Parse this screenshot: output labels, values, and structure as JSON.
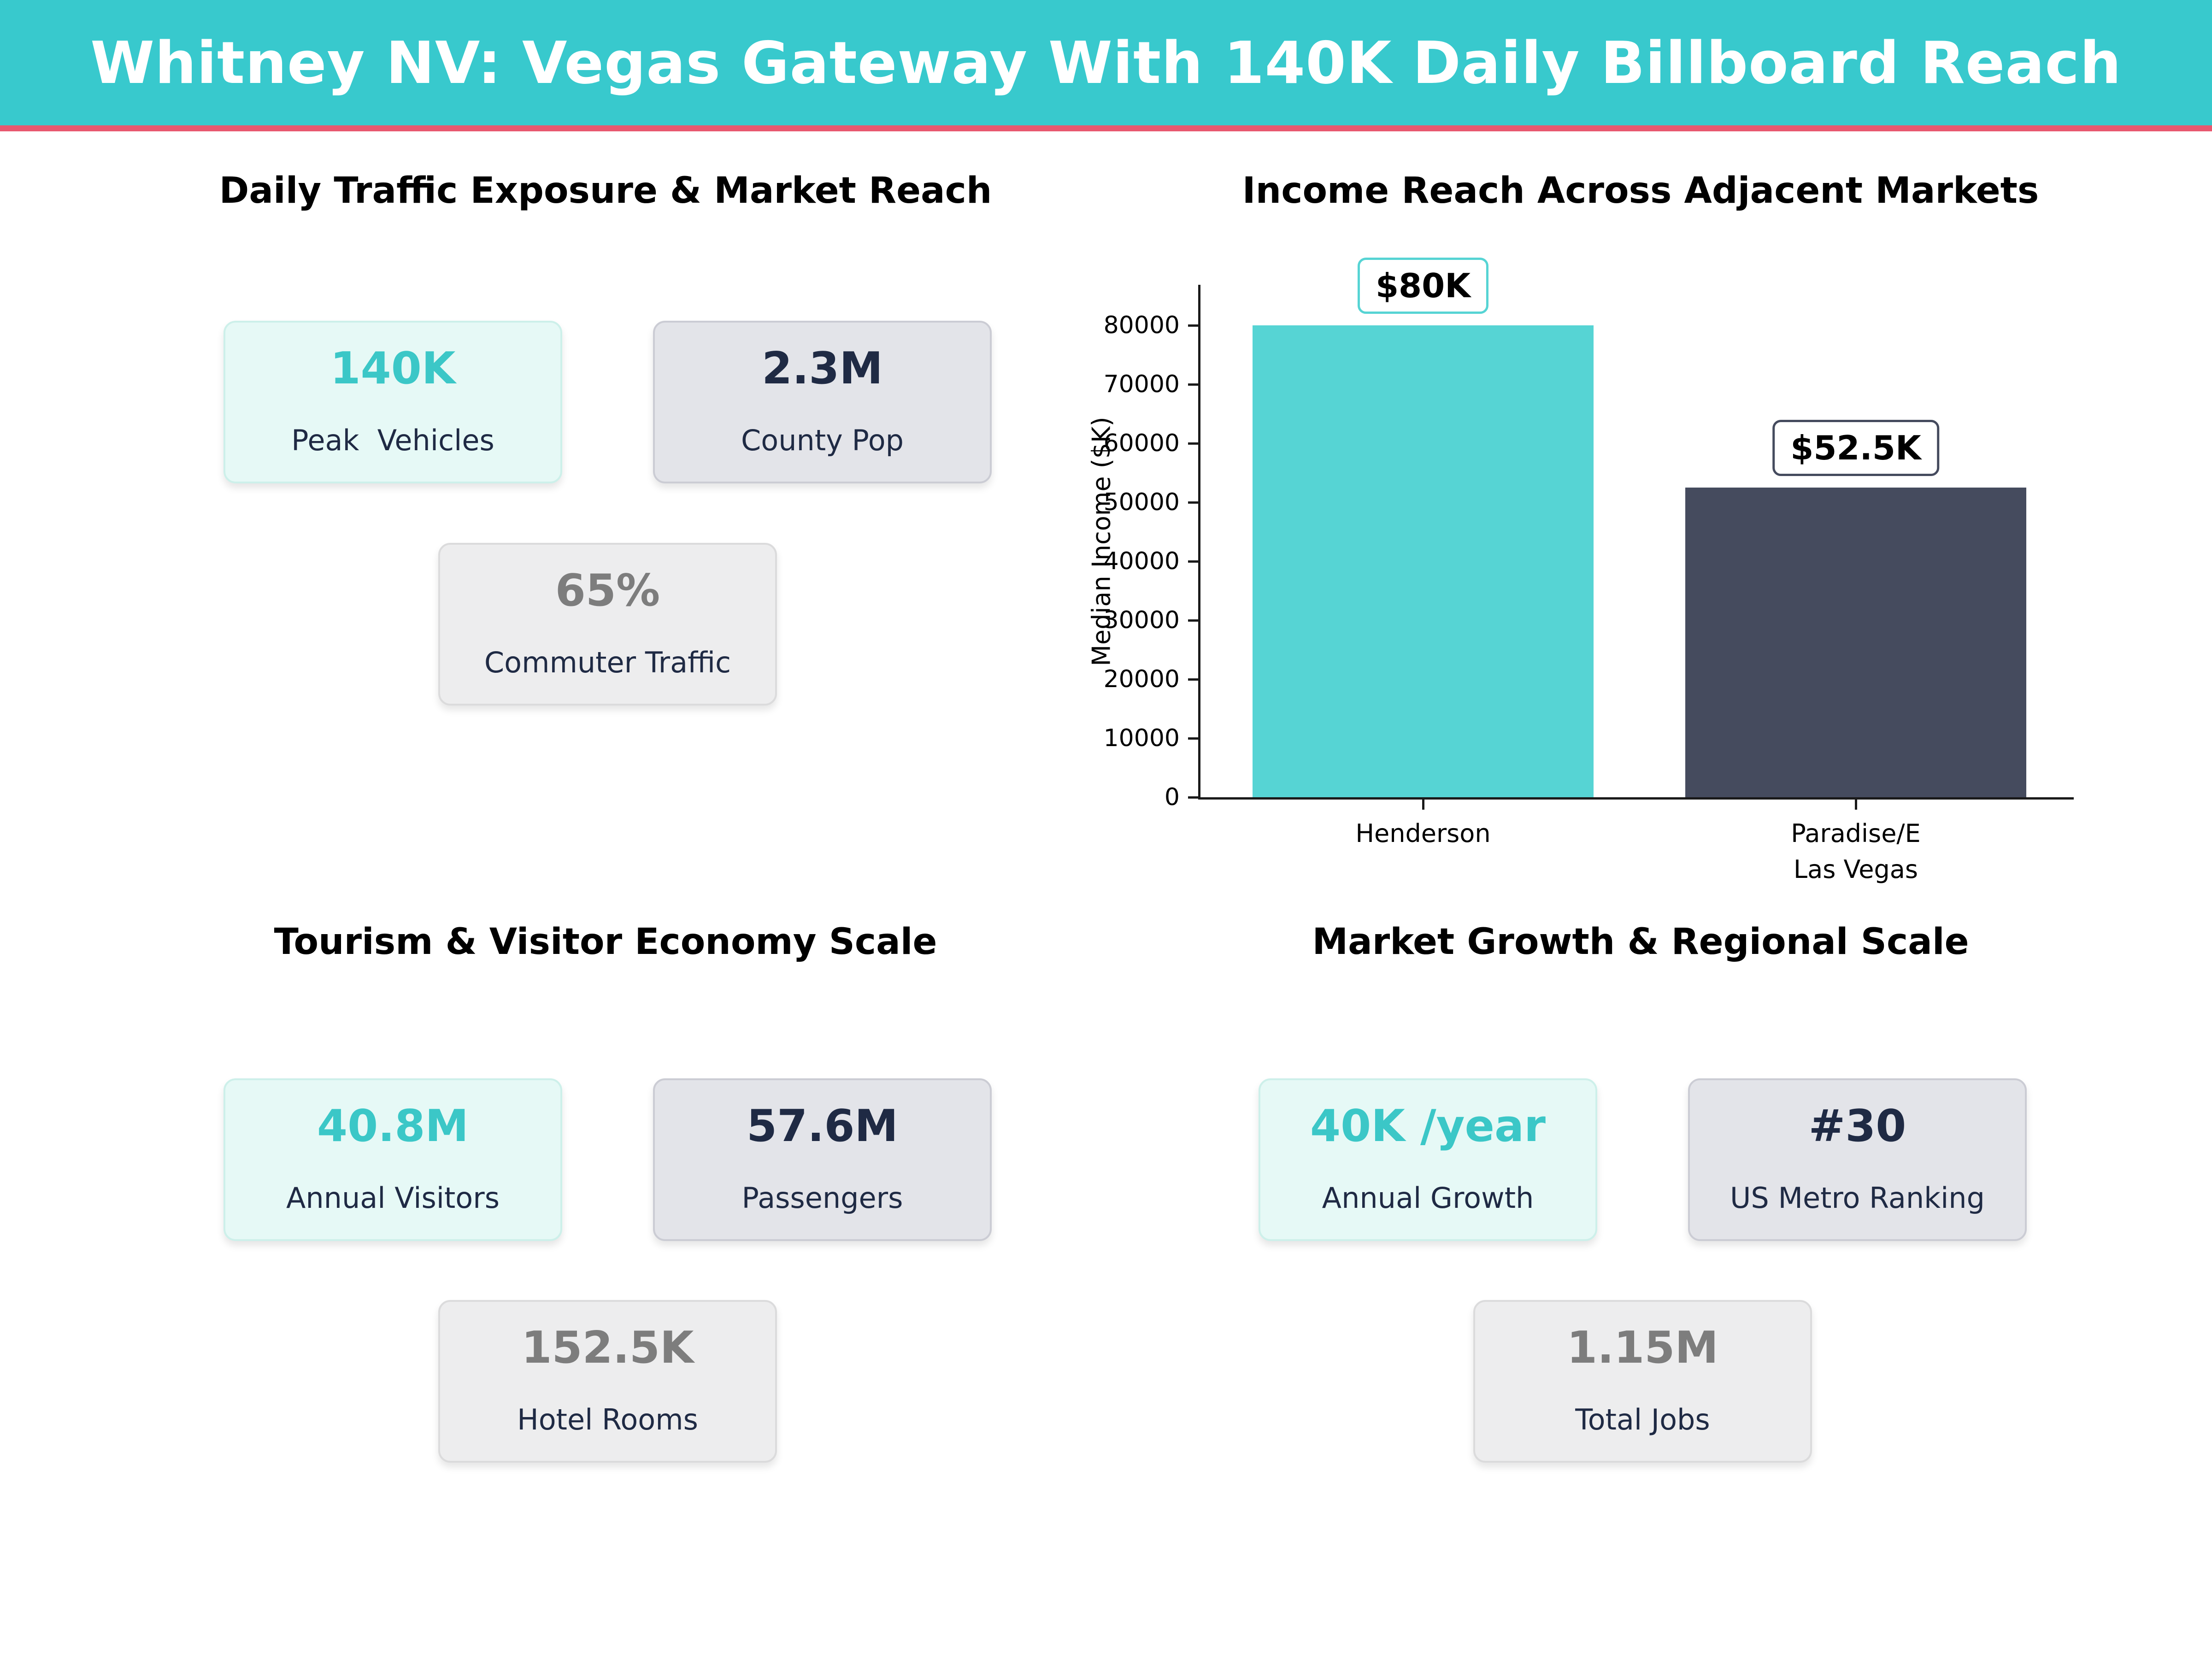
{
  "header": {
    "title": "Whitney NV: Vegas Gateway With 140K Daily Billboard Reach"
  },
  "palette": {
    "header_bg": "#38c9cd",
    "header_accent": "#e8586f",
    "teal": "#3bc7c7",
    "navy": "#1f2a44",
    "muted_gray": "#7d7d7d",
    "bar_teal": "#56d4d4",
    "bar_slate": "#454b5e"
  },
  "quadrants": {
    "traffic": {
      "title": "Daily Traffic Exposure & Market Reach",
      "cards": [
        {
          "value": "140K",
          "label": "Peak  Vehicles"
        },
        {
          "value": "2.3M",
          "label": "County Pop"
        },
        {
          "value": "65%",
          "label": "Commuter Traffic"
        }
      ]
    },
    "income": {
      "title": "Income Reach Across Adjacent Markets"
    },
    "tourism": {
      "title": "Tourism & Visitor Economy Scale",
      "cards": [
        {
          "value": "40.8M",
          "label": "Annual Visitors"
        },
        {
          "value": "57.6M",
          "label": "Passengers"
        },
        {
          "value": "152.5K",
          "label": "Hotel Rooms"
        }
      ]
    },
    "growth": {
      "title": "Market Growth & Regional Scale",
      "cards": [
        {
          "value": "40K /year",
          "label": "Annual Growth"
        },
        {
          "value": "#30",
          "label": "US Metro Ranking"
        },
        {
          "value": "1.15M",
          "label": "Total Jobs"
        }
      ]
    }
  },
  "chart_data": {
    "type": "bar",
    "title": "Income Reach Across Adjacent Markets",
    "categories": [
      "Henderson",
      "Paradise/E\nLas Vegas"
    ],
    "values": [
      80000,
      52500
    ],
    "bar_colors": [
      "#56d4d4",
      "#454b5e"
    ],
    "annotations": [
      "$80K",
      "$52.5K"
    ],
    "xlabel": "",
    "ylabel": "Median Income ($K)",
    "ylim": [
      0,
      80000
    ],
    "ytick_step": 10000,
    "yticks": [
      0,
      10000,
      20000,
      30000,
      40000,
      50000,
      60000,
      70000,
      80000
    ],
    "grid": false,
    "legend": null
  }
}
